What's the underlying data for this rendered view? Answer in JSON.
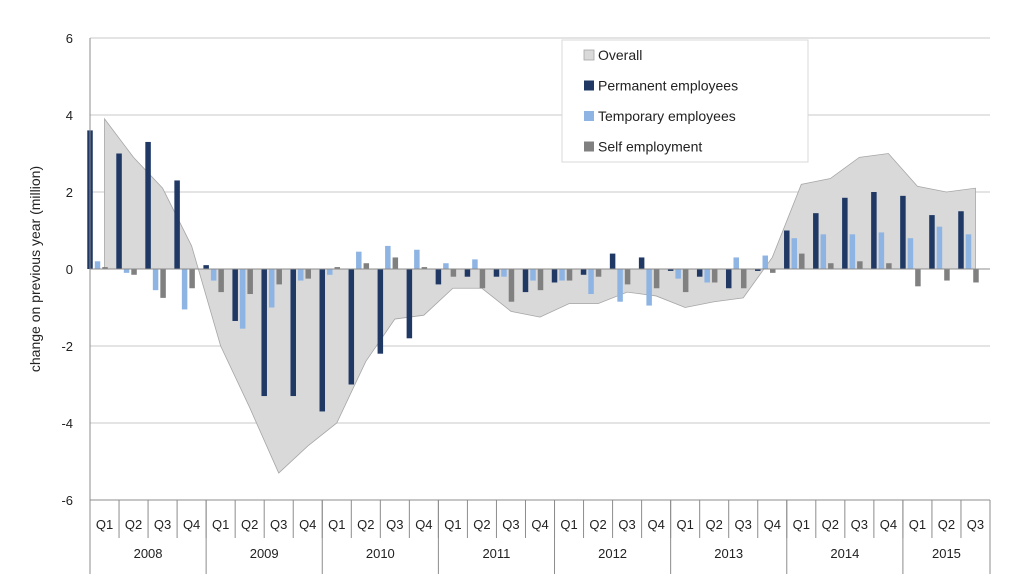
{
  "chart_data": {
    "type": "bar",
    "ylabel": "change on previous year (million)",
    "ylim": [
      -6,
      6
    ],
    "yticks": [
      "6",
      "4",
      "2",
      "0",
      "-2",
      "-4",
      "-6"
    ],
    "grid": true,
    "legend_position": "top-right",
    "categories": [
      "Q1",
      "Q2",
      "Q3",
      "Q4",
      "Q1",
      "Q2",
      "Q3",
      "Q4",
      "Q1",
      "Q2",
      "Q3",
      "Q4",
      "Q1",
      "Q2",
      "Q3",
      "Q4",
      "Q1",
      "Q2",
      "Q3",
      "Q4",
      "Q1",
      "Q2",
      "Q3",
      "Q4",
      "Q1",
      "Q2",
      "Q3",
      "Q4",
      "Q1",
      "Q2",
      "Q3"
    ],
    "years": [
      {
        "label": "2008",
        "count": 4
      },
      {
        "label": "2009",
        "count": 4
      },
      {
        "label": "2010",
        "count": 4
      },
      {
        "label": "2011",
        "count": 4
      },
      {
        "label": "2012",
        "count": 4
      },
      {
        "label": "2013",
        "count": 4
      },
      {
        "label": "2014",
        "count": 4
      },
      {
        "label": "2015",
        "count": 3
      }
    ],
    "series": [
      {
        "name": "Overall",
        "kind": "area",
        "color": "#d9d9d9",
        "values": [
          3.9,
          2.9,
          2.1,
          0.6,
          -2.0,
          -3.6,
          -5.3,
          -4.6,
          -4.0,
          -2.4,
          -1.3,
          -1.2,
          -0.5,
          -0.5,
          -1.1,
          -1.25,
          -0.9,
          -0.9,
          -0.6,
          -0.7,
          -1.0,
          -0.85,
          -0.75,
          0.3,
          2.2,
          2.35,
          2.9,
          3.0,
          2.15,
          2.0,
          2.1
        ]
      },
      {
        "name": "Permanent employees",
        "kind": "bar",
        "color": "#1f3864",
        "values": [
          3.6,
          3.0,
          3.3,
          2.3,
          0.1,
          -1.35,
          -3.3,
          -3.3,
          -3.7,
          -3.0,
          -2.2,
          -1.8,
          -0.4,
          -0.2,
          -0.2,
          -0.6,
          -0.35,
          -0.15,
          0.4,
          0.3,
          -0.05,
          -0.2,
          -0.5,
          -0.05,
          1.0,
          1.45,
          1.85,
          2.0,
          1.9,
          1.4,
          1.5
        ]
      },
      {
        "name": "Temporary employees",
        "kind": "bar",
        "color": "#8eb4e3",
        "values": [
          0.2,
          -0.1,
          -0.55,
          -1.05,
          -0.3,
          -1.55,
          -1.0,
          -0.3,
          -0.15,
          0.45,
          0.6,
          0.5,
          0.15,
          0.25,
          -0.2,
          -0.3,
          -0.3,
          -0.65,
          -0.85,
          -0.95,
          -0.25,
          -0.35,
          0.3,
          0.35,
          0.8,
          0.9,
          0.9,
          0.95,
          0.8,
          1.1,
          0.9
        ]
      },
      {
        "name": "Self employment",
        "kind": "bar",
        "color": "#808080",
        "values": [
          0.05,
          -0.15,
          -0.75,
          -0.5,
          -0.6,
          -0.65,
          -0.4,
          -0.25,
          0.05,
          0.15,
          0.3,
          0.05,
          -0.2,
          -0.5,
          -0.85,
          -0.55,
          -0.3,
          -0.2,
          -0.4,
          -0.5,
          -0.6,
          -0.35,
          -0.5,
          -0.1,
          0.4,
          0.15,
          0.2,
          0.15,
          -0.45,
          -0.3,
          -0.35
        ]
      }
    ]
  }
}
